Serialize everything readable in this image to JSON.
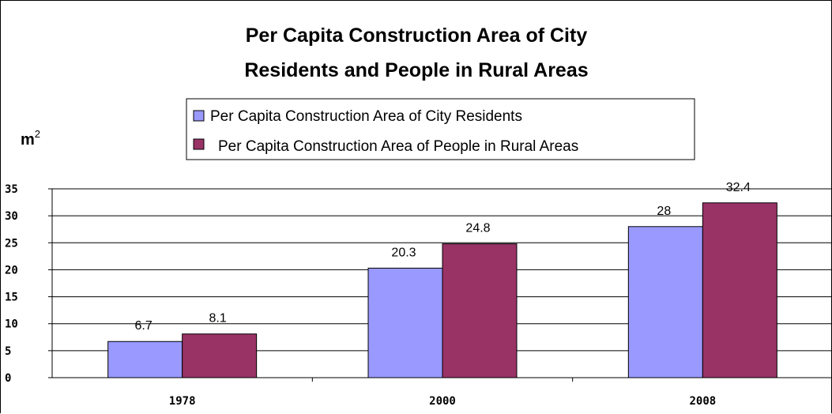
{
  "chart_data": {
    "type": "bar",
    "title_lines": [
      "Per Capita Construction Area of City",
      "Residents and People in Rural Areas"
    ],
    "unit": "m",
    "unit_superscript": "2",
    "categories": [
      "1978",
      "2000",
      "2008"
    ],
    "series": [
      {
        "name": "Per Capita Construction Area of City Residents",
        "values": [
          6.7,
          20.3,
          28
        ],
        "labels": [
          "6.7",
          "20.3",
          "28"
        ],
        "color": "#9999ff"
      },
      {
        "name": "Per Capita Construction Area of People in Rural Areas",
        "values": [
          8.1,
          24.8,
          32.4
        ],
        "labels": [
          "8.1",
          "24.8",
          "32.4"
        ],
        "color": "#993366"
      }
    ],
    "ylim": [
      0,
      35
    ],
    "yticks": [
      "0",
      "5",
      "10",
      "15",
      "20",
      "25",
      "30",
      "35"
    ],
    "grid": true,
    "legend_position": "top"
  }
}
